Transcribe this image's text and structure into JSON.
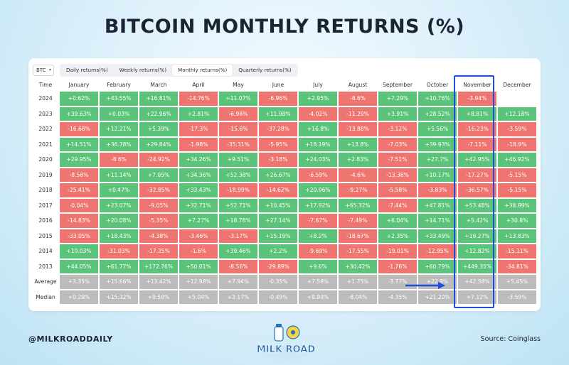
{
  "header": {
    "title": "BITCOIN MONTHLY RETURNS (%)"
  },
  "toolbar": {
    "coin_select": "BTC",
    "tabs": [
      "Daily returns(%)",
      "Weekly returns(%)",
      "Monthly returns(%)",
      "Quarterly returns(%)"
    ],
    "active_tab": 2
  },
  "footer": {
    "handle": "@MILKROADDAILY",
    "source": "Source: Coinglass",
    "logo_text": "MILK ROAD"
  },
  "colors": {
    "positive": "#5cc37a",
    "negative": "#ef7670",
    "summary": "#bcbcbc",
    "highlight": "#1f4fd8"
  },
  "chart_data": {
    "type": "table",
    "corner_label": "Time",
    "columns": [
      "January",
      "February",
      "March",
      "April",
      "May",
      "June",
      "July",
      "August",
      "September",
      "October",
      "November",
      "December"
    ],
    "highlight_column": "November",
    "rows": [
      {
        "label": "2024",
        "values": [
          "+0.62%",
          "+43.55%",
          "+16.81%",
          "-14.76%",
          "+11.07%",
          "-6.96%",
          "+2.95%",
          "-8.6%",
          "+7.29%",
          "+10.76%",
          "-3.94%",
          ""
        ]
      },
      {
        "label": "2023",
        "values": [
          "+39.63%",
          "+0.03%",
          "+22.96%",
          "+2.81%",
          "-6.98%",
          "+11.98%",
          "-4.02%",
          "-11.29%",
          "+3.91%",
          "+28.52%",
          "+8.81%",
          "+12.18%"
        ]
      },
      {
        "label": "2022",
        "values": [
          "-16.68%",
          "+12.21%",
          "+5.39%",
          "-17.3%",
          "-15.6%",
          "-37.28%",
          "+16.8%",
          "-13.88%",
          "-3.12%",
          "+5.56%",
          "-16.23%",
          "-3.59%"
        ]
      },
      {
        "label": "2021",
        "values": [
          "+14.51%",
          "+36.78%",
          "+29.84%",
          "-1.98%",
          "-35.31%",
          "-5.95%",
          "+18.19%",
          "+13.8%",
          "-7.03%",
          "+39.93%",
          "-7.11%",
          "-18.9%"
        ]
      },
      {
        "label": "2020",
        "values": [
          "+29.95%",
          "-8.6%",
          "-24.92%",
          "+34.26%",
          "+9.51%",
          "-3.18%",
          "+24.03%",
          "+2.83%",
          "-7.51%",
          "+27.7%",
          "+42.95%",
          "+46.92%"
        ]
      },
      {
        "label": "2019",
        "values": [
          "-8.58%",
          "+11.14%",
          "+7.05%",
          "+34.36%",
          "+52.38%",
          "+26.67%",
          "-6.59%",
          "-4.6%",
          "-13.38%",
          "+10.17%",
          "-17.27%",
          "-5.15%"
        ]
      },
      {
        "label": "2018",
        "values": [
          "-25.41%",
          "+0.47%",
          "-32.85%",
          "+33.43%",
          "-18.99%",
          "-14.62%",
          "+20.96%",
          "-9.27%",
          "-5.58%",
          "-3.83%",
          "-36.57%",
          "-5.15%"
        ]
      },
      {
        "label": "2017",
        "values": [
          "-0.04%",
          "+23.07%",
          "-9.05%",
          "+32.71%",
          "+52.71%",
          "+10.45%",
          "+17.92%",
          "+65.32%",
          "-7.44%",
          "+47.81%",
          "+53.48%",
          "+38.89%"
        ]
      },
      {
        "label": "2016",
        "values": [
          "-14.83%",
          "+20.08%",
          "-5.35%",
          "+7.27%",
          "+18.78%",
          "+27.14%",
          "-7.67%",
          "-7.49%",
          "+6.04%",
          "+14.71%",
          "+5.42%",
          "+30.8%"
        ]
      },
      {
        "label": "2015",
        "values": [
          "-33.05%",
          "+18.43%",
          "-4.38%",
          "-3.46%",
          "-3.17%",
          "+15.19%",
          "+8.2%",
          "-18.67%",
          "+2.35%",
          "+33.49%",
          "+19.27%",
          "+13.83%"
        ]
      },
      {
        "label": "2014",
        "values": [
          "+10.03%",
          "-31.03%",
          "-17.25%",
          "-1.6%",
          "+39.46%",
          "+2.2%",
          "-9.69%",
          "-17.55%",
          "-19.01%",
          "-12.95%",
          "+12.82%",
          "-15.11%"
        ]
      },
      {
        "label": "2013",
        "values": [
          "+44.05%",
          "+61.77%",
          "+172.76%",
          "+50.01%",
          "-8.56%",
          "-29.89%",
          "+9.6%",
          "+30.42%",
          "-1.76%",
          "+60.79%",
          "+449.35%",
          "-34.81%"
        ]
      }
    ],
    "summary_rows": [
      {
        "label": "Average",
        "values": [
          "+3.35%",
          "+15.66%",
          "+13.42%",
          "+12.98%",
          "+7.94%",
          "-0.35%",
          "+7.56%",
          "+1.75%",
          "-3.77%",
          "+22.9%",
          "+42.58%",
          "+5.45%"
        ]
      },
      {
        "label": "Median",
        "values": [
          "+0.29%",
          "+15.32%",
          "+0.50%",
          "+5.04%",
          "+3.17%",
          "-0.49%",
          "+8.90%",
          "-8.04%",
          "-4.35%",
          "+21.20%",
          "+7.12%",
          "-3.59%"
        ]
      }
    ]
  }
}
